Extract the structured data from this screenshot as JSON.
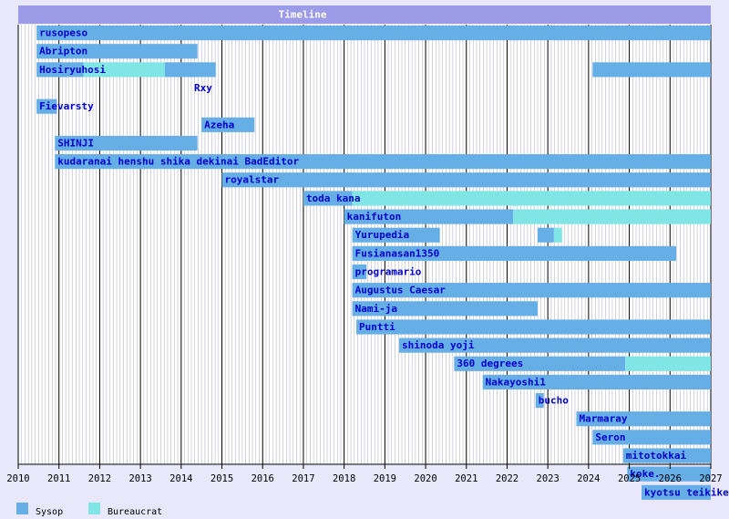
{
  "chart_data": {
    "type": "timeline",
    "title": "Timeline",
    "x_axis": {
      "min": 2010,
      "max": 2027,
      "tick_labels": [
        "2010",
        "2011",
        "2012",
        "2013",
        "2014",
        "2015",
        "2016",
        "2017",
        "2018",
        "2019",
        "2020",
        "2021",
        "2022",
        "2023",
        "2024",
        "2025",
        "2026",
        "2027"
      ]
    },
    "legend": [
      {
        "name": "Sysop",
        "color": "#66aee6"
      },
      {
        "name": "Bureaucrat",
        "color": "#7fe5e5"
      }
    ],
    "label_color": "#0000cc",
    "rows": [
      {
        "label": "rusopeso",
        "segments": [
          {
            "start": 2010.45,
            "end": 2027,
            "role": "Sysop"
          }
        ]
      },
      {
        "label": "Abripton",
        "segments": [
          {
            "start": 2010.45,
            "end": 2014.4,
            "role": "Sysop"
          }
        ]
      },
      {
        "label": "Hosiryuhosi",
        "segments": [
          {
            "start": 2010.45,
            "end": 2011.6,
            "role": "Sysop"
          },
          {
            "start": 2011.6,
            "end": 2013.6,
            "role": "Bureaucrat"
          },
          {
            "start": 2013.6,
            "end": 2014.85,
            "role": "Sysop"
          },
          {
            "start": 2024.1,
            "end": 2027,
            "role": "Sysop"
          }
        ]
      },
      {
        "label": "Rxy",
        "label_start": 2014.25,
        "segments": []
      },
      {
        "label": "Fievarsty",
        "segments": [
          {
            "start": 2010.45,
            "end": 2010.95,
            "role": "Sysop"
          }
        ]
      },
      {
        "label": "Azeha",
        "segments": [
          {
            "start": 2014.5,
            "end": 2015.8,
            "role": "Sysop"
          }
        ]
      },
      {
        "label": "SHINJI",
        "segments": [
          {
            "start": 2010.9,
            "end": 2014.4,
            "role": "Sysop"
          }
        ]
      },
      {
        "label": "kudaranai henshu shika dekinai BadEditor",
        "segments": [
          {
            "start": 2010.9,
            "end": 2027,
            "role": "Sysop"
          }
        ]
      },
      {
        "label": "royalstar",
        "segments": [
          {
            "start": 2015,
            "end": 2027,
            "role": "Sysop"
          }
        ]
      },
      {
        "label": "toda kana",
        "segments": [
          {
            "start": 2017,
            "end": 2018.2,
            "role": "Sysop"
          },
          {
            "start": 2018.2,
            "end": 2027,
            "role": "Bureaucrat"
          }
        ]
      },
      {
        "label": "kanifuton",
        "segments": [
          {
            "start": 2018,
            "end": 2022.15,
            "role": "Sysop"
          },
          {
            "start": 2022.15,
            "end": 2027,
            "role": "Bureaucrat"
          }
        ]
      },
      {
        "label": "Yurupedia",
        "segments": [
          {
            "start": 2018.2,
            "end": 2020.35,
            "role": "Sysop"
          },
          {
            "start": 2022.75,
            "end": 2023.15,
            "role": "Sysop"
          },
          {
            "start": 2023.15,
            "end": 2023.35,
            "role": "Bureaucrat"
          }
        ]
      },
      {
        "label": "Fusianasan1350",
        "segments": [
          {
            "start": 2018.2,
            "end": 2026.15,
            "role": "Sysop"
          }
        ]
      },
      {
        "label": "programario",
        "segments": [
          {
            "start": 2018.2,
            "end": 2018.55,
            "role": "Sysop"
          }
        ]
      },
      {
        "label": "Augustus Caesar",
        "segments": [
          {
            "start": 2018.2,
            "end": 2027,
            "role": "Sysop"
          }
        ]
      },
      {
        "label": "Nami-ja",
        "segments": [
          {
            "start": 2018.2,
            "end": 2022.75,
            "role": "Sysop"
          }
        ]
      },
      {
        "label": "Puntti",
        "segments": [
          {
            "start": 2018.3,
            "end": 2027,
            "role": "Sysop"
          }
        ]
      },
      {
        "label": "shinoda yoji",
        "segments": [
          {
            "start": 2019.35,
            "end": 2027,
            "role": "Sysop"
          }
        ]
      },
      {
        "label": "360 degrees",
        "segments": [
          {
            "start": 2020.7,
            "end": 2024.9,
            "role": "Sysop"
          },
          {
            "start": 2024.9,
            "end": 2027,
            "role": "Bureaucrat"
          }
        ]
      },
      {
        "label": "Nakayoshi1",
        "segments": [
          {
            "start": 2021.4,
            "end": 2027,
            "role": "Sysop"
          }
        ]
      },
      {
        "label": "bucho",
        "segments": [
          {
            "start": 2022.7,
            "end": 2022.9,
            "role": "Sysop"
          }
        ]
      },
      {
        "label": "Marmaray",
        "segments": [
          {
            "start": 2023.7,
            "end": 2027,
            "role": "Sysop"
          }
        ]
      },
      {
        "label": "Seron",
        "segments": [
          {
            "start": 2024.1,
            "end": 2027,
            "role": "Sysop"
          }
        ]
      },
      {
        "label": "mitotokkai",
        "segments": [
          {
            "start": 2024.85,
            "end": 2027,
            "role": "Sysop"
          }
        ]
      },
      {
        "label": "koke.",
        "segments": [
          {
            "start": 2024.95,
            "end": 2027,
            "role": "Sysop"
          }
        ]
      },
      {
        "label": "kyotsu teikiken",
        "segments": [
          {
            "start": 2025.3,
            "end": 2027,
            "role": "Sysop"
          }
        ]
      }
    ]
  }
}
